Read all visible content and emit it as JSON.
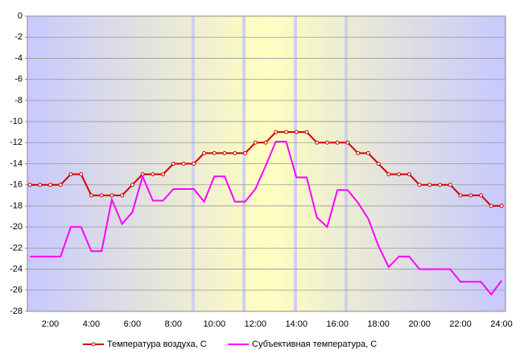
{
  "chart_data": {
    "type": "line",
    "categories": [
      null,
      null,
      "2:00",
      null,
      null,
      null,
      "4:00",
      null,
      null,
      null,
      "6:00",
      null,
      null,
      null,
      "8:00",
      null,
      null,
      null,
      "10:00",
      null,
      null,
      null,
      "12:00",
      null,
      null,
      null,
      "14:00",
      null,
      null,
      null,
      "16:00",
      null,
      null,
      null,
      "18:00",
      null,
      null,
      null,
      "20:00",
      null,
      null,
      null,
      "22:00",
      null,
      null,
      null,
      "24:00"
    ],
    "series": [
      {
        "name": "Температура воздуха, С",
        "color": "#cc0000",
        "markers": true,
        "values": [
          -16,
          -16,
          -16,
          -16,
          -15,
          -15,
          -17,
          -17,
          -17,
          -17,
          -16,
          -15,
          -15,
          -15,
          -14,
          -14,
          -14,
          -13,
          -13,
          -13,
          -13,
          -13,
          -12,
          -12,
          -11,
          -11,
          -11,
          -11,
          -12,
          -12,
          -12,
          -12,
          -13,
          -13,
          -14,
          -15,
          -15,
          -15,
          -16,
          -16,
          -16,
          -16,
          -17,
          -17,
          -17,
          -18,
          -18
        ]
      },
      {
        "name": "Субъективная температура, С",
        "color": "#ff00ff",
        "markers": false,
        "values": [
          -22.8,
          -22.8,
          -22.8,
          -22.8,
          -20,
          -20,
          -22.3,
          -22.3,
          -17.4,
          -19.7,
          -18.6,
          -15.2,
          -17.5,
          -17.5,
          -16.4,
          -16.4,
          -16.4,
          -17.6,
          -15.2,
          -15.2,
          -17.6,
          -17.6,
          -16.4,
          -14.2,
          -11.9,
          -11.9,
          -15.3,
          -15.3,
          -19.1,
          -20,
          -16.5,
          -16.5,
          -17.7,
          -19.2,
          -21.8,
          -23.8,
          -22.8,
          -22.8,
          -24,
          -24,
          -24,
          -24,
          -25.2,
          -25.2,
          -25.2,
          -26.4,
          -25.1
        ]
      }
    ],
    "ylim": [
      -28,
      0
    ],
    "yticks": [
      0,
      -2,
      -4,
      -6,
      -8,
      -10,
      -12,
      -14,
      -16,
      -18,
      -20,
      -22,
      -24,
      -26,
      -28
    ],
    "grid": true,
    "legend": "bottom"
  }
}
